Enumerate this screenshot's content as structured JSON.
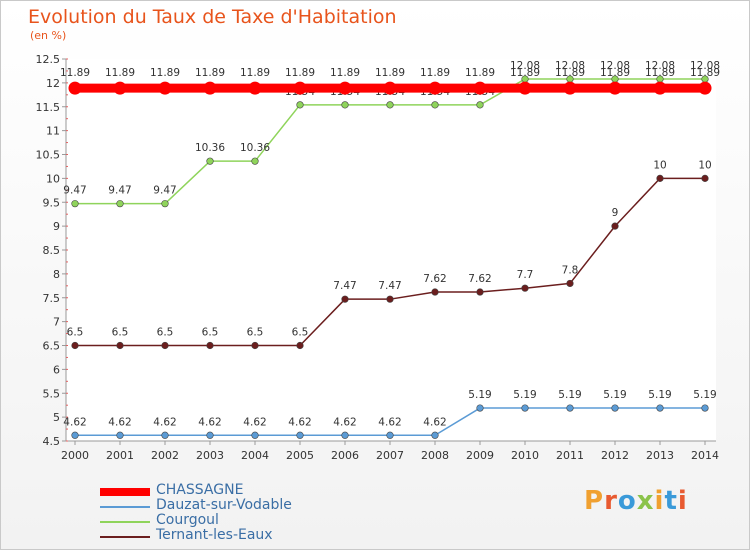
{
  "chart_data": {
    "type": "line",
    "title": "Evolution du Taux de Taxe d'Habitation",
    "subtitle": "(en %)",
    "x": [
      "2000",
      "2001",
      "2002",
      "2003",
      "2004",
      "2005",
      "2006",
      "2007",
      "2008",
      "2009",
      "2010",
      "2011",
      "2012",
      "2013",
      "2014"
    ],
    "ylim": [
      4.5,
      12.5
    ],
    "yticks": [
      "4.5",
      "5",
      "5.5",
      "6",
      "6.5",
      "7",
      "7.5",
      "8",
      "8.5",
      "9",
      "9.5",
      "10",
      "10.5",
      "11",
      "11.5",
      "12",
      "12.5"
    ],
    "grid": false,
    "legend_position": "bottom-left",
    "series": [
      {
        "name": "CHASSAGNE",
        "color": "#ff0000",
        "values": [
          11.89,
          11.89,
          11.89,
          11.89,
          11.89,
          11.89,
          11.89,
          11.89,
          11.89,
          11.89,
          11.89,
          11.89,
          11.89,
          11.89,
          11.89
        ]
      },
      {
        "name": "Dauzat-sur-Vodable",
        "color": "#5b9bd5",
        "values": [
          4.62,
          4.62,
          4.62,
          4.62,
          4.62,
          4.62,
          4.62,
          4.62,
          4.62,
          5.19,
          5.19,
          5.19,
          5.19,
          5.19,
          5.19
        ]
      },
      {
        "name": "Courgoul",
        "color": "#8fd45b",
        "values": [
          9.47,
          9.47,
          9.47,
          10.36,
          10.36,
          11.54,
          11.54,
          11.54,
          11.54,
          11.54,
          12.08,
          12.08,
          12.08,
          12.08,
          12.08
        ]
      },
      {
        "name": "Ternant-les-Eaux",
        "color": "#6b1e1e",
        "values": [
          6.5,
          6.5,
          6.5,
          6.5,
          6.5,
          6.5,
          7.47,
          7.47,
          7.62,
          7.62,
          7.7,
          7.8,
          9,
          10,
          10
        ]
      }
    ]
  },
  "logo": {
    "text": "Proxiti"
  }
}
